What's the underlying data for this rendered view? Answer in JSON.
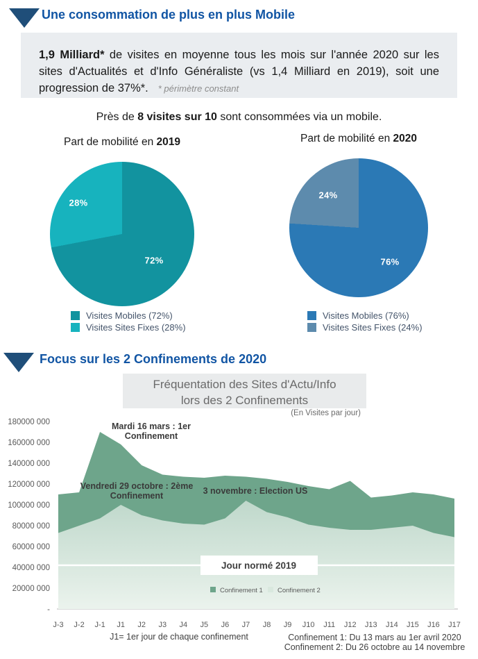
{
  "section1": {
    "title": "Une consommation de plus en plus Mobile",
    "info_box": {
      "bold": "1,9 Milliard*",
      "text": " de visites en moyenne tous les mois sur l'année 2020 sur les sites d'Actualités et d'Info Généraliste (vs 1,4 Milliard en 2019), soit une progression de 37%*.",
      "footnote": "* périmètre constant"
    },
    "subtitle": {
      "prefix": "Près de ",
      "bold": "8 visites sur 10",
      "suffix": " sont consommées via un mobile."
    }
  },
  "pies": [
    {
      "title_prefix": "Part de mobilité en ",
      "title_bold": "2019",
      "slices": [
        {
          "label": "Visites Mobiles (72%)",
          "value": 72,
          "pct_label": "72%",
          "color": "#12939F"
        },
        {
          "label": "Visites Sites Fixes (28%)",
          "value": 28,
          "pct_label": "28%",
          "color": "#17B3BE"
        }
      ]
    },
    {
      "title_prefix": "Part de mobilité en ",
      "title_bold": "2020",
      "slices": [
        {
          "label": "Visites Mobiles (76%)",
          "value": 76,
          "pct_label": "76%",
          "color": "#2B79B5"
        },
        {
          "label": "Visites Sites Fixes (24%)",
          "value": 24,
          "pct_label": "24%",
          "color": "#5D8BAD"
        }
      ]
    }
  ],
  "section2": {
    "title": "Focus sur les 2 Confinements de 2020"
  },
  "chart_data": {
    "type": "area",
    "title_line1": "Fréquentation des Sites d'Actu/Info",
    "title_line2": "lors des 2 Confinements",
    "subtitle": "(En Visites par jour)",
    "categories": [
      "J-3",
      "J-2",
      "J-1",
      "J1",
      "J2",
      "J3",
      "J4",
      "J5",
      "J6",
      "J7",
      "J8",
      "J9",
      "J10",
      "J11",
      "J12",
      "J13",
      "J14",
      "J15",
      "J16",
      "J17"
    ],
    "series": [
      {
        "name": "Confinement 1",
        "color": "#6EA58B",
        "legend_color": "#6EA58B",
        "values": [
          110000000,
          112000000,
          170000000,
          158000000,
          138000000,
          129000000,
          127000000,
          126000000,
          128000000,
          127000000,
          125000000,
          122000000,
          118000000,
          115000000,
          123000000,
          107000000,
          109000000,
          112000000,
          110000000,
          106000000
        ]
      },
      {
        "name": "Confinement 2",
        "color_top": "#BFD8CB",
        "color_bottom": "#EBF3ED",
        "legend_color": "#D9E8DE",
        "values": [
          73000000,
          80000000,
          87000000,
          100000000,
          90000000,
          85000000,
          82000000,
          81000000,
          87000000,
          104000000,
          93000000,
          88000000,
          81000000,
          78000000,
          76000000,
          76000000,
          78000000,
          80000000,
          73000000,
          69000000
        ]
      }
    ],
    "ylim": [
      0,
      180000000
    ],
    "ytick_step": 20000000,
    "ytick_labels": [
      "180000 000",
      "160000 000",
      "140000 000",
      "120000 000",
      "100000 000",
      "80000 000",
      "60000 000",
      "40000 000",
      "20000 000",
      "-"
    ],
    "baseline": {
      "label": "Jour normé 2019",
      "value": 42000000
    },
    "annotations": [
      {
        "lines": [
          "Mardi 16 mars : 1er",
          "Confinement"
        ],
        "x": 218,
        "y": 18
      },
      {
        "lines": [
          "Vendredi 29 octobre : 2ème",
          "Confinement"
        ],
        "x": 197,
        "y": 104
      },
      {
        "lines": [
          "3 novembre : Election US"
        ],
        "x": 368,
        "y": 111
      }
    ],
    "x_note": "J1= 1er jour de chaque confinement",
    "footnotes": [
      "Confinement 1: Du 13 mars au 1er avril 2020",
      "Confinement 2: Du 26 octobre au 14 novembre"
    ]
  }
}
